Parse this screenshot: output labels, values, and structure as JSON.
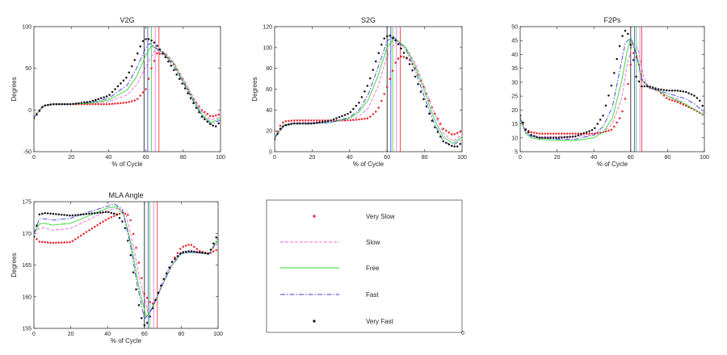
{
  "colors": {
    "very_slow": "#e8242a",
    "slow": "#ee66dd",
    "free": "#2ed82e",
    "fast": "#3a3ad6",
    "very_fast": "#111111",
    "axis": "#333333"
  },
  "legend": {
    "entries": [
      {
        "label": "Very Slow",
        "style": "dots",
        "color": "#e8242a"
      },
      {
        "label": "Slow",
        "style": "dashed",
        "color": "#ee66dd"
      },
      {
        "label": "Free",
        "style": "solid",
        "color": "#2ed82e"
      },
      {
        "label": "Fast",
        "style": "dashdot",
        "color": "#3a3ad6"
      },
      {
        "label": "Very Fast",
        "style": "dots",
        "color": "#111111"
      }
    ],
    "corner_tick": "0"
  },
  "chart_data": [
    {
      "type": "line",
      "title": "V2G",
      "xlabel": "% of Cycle",
      "ylabel": "Degrees",
      "xlim": [
        0,
        100
      ],
      "ylim": [
        -50,
        100
      ],
      "xticks": [
        0,
        20,
        40,
        60,
        80,
        100
      ],
      "yticks": [
        -50,
        0,
        50,
        100
      ],
      "peak_lines": [
        59,
        61,
        63,
        65,
        67
      ],
      "series": [
        {
          "name": "Very Slow",
          "x": [
            0,
            5,
            10,
            20,
            30,
            40,
            50,
            55,
            60,
            63,
            66,
            70,
            75,
            80,
            85,
            90,
            95,
            100
          ],
          "y": [
            -8,
            5,
            7,
            7,
            7,
            7,
            9,
            12,
            25,
            50,
            68,
            67,
            55,
            35,
            15,
            0,
            -8,
            -5
          ]
        },
        {
          "name": "Slow",
          "x": [
            0,
            5,
            10,
            20,
            30,
            40,
            50,
            55,
            60,
            65,
            70,
            75,
            80,
            85,
            90,
            95,
            100
          ],
          "y": [
            -9,
            5,
            7,
            7,
            8,
            10,
            18,
            30,
            52,
            72,
            70,
            57,
            38,
            17,
            -2,
            -12,
            -8
          ]
        },
        {
          "name": "Free",
          "x": [
            0,
            5,
            10,
            20,
            30,
            40,
            50,
            55,
            60,
            63,
            70,
            75,
            80,
            85,
            90,
            95,
            100
          ],
          "y": [
            -9,
            5,
            7,
            7,
            8,
            12,
            24,
            40,
            66,
            77,
            68,
            55,
            35,
            14,
            -5,
            -15,
            -10
          ]
        },
        {
          "name": "Fast",
          "x": [
            0,
            5,
            10,
            20,
            30,
            40,
            50,
            55,
            60,
            62,
            70,
            75,
            80,
            85,
            90,
            95,
            100
          ],
          "y": [
            -9,
            5,
            7,
            7,
            9,
            14,
            30,
            50,
            75,
            80,
            67,
            52,
            33,
            12,
            -7,
            -17,
            -12
          ]
        },
        {
          "name": "Very Fast",
          "x": [
            0,
            5,
            10,
            20,
            30,
            40,
            50,
            55,
            58,
            60,
            62,
            65,
            70,
            75,
            80,
            85,
            90,
            95,
            98,
            100
          ],
          "y": [
            -10,
            5,
            7,
            7,
            10,
            17,
            40,
            65,
            82,
            85,
            85,
            80,
            65,
            48,
            30,
            10,
            -8,
            -18,
            -20,
            -12
          ]
        }
      ]
    },
    {
      "type": "line",
      "title": "S2G",
      "xlabel": "% of Cycle",
      "ylabel": "Degrees",
      "xlim": [
        0,
        100
      ],
      "ylim": [
        0,
        120
      ],
      "xticks": [
        0,
        20,
        40,
        60,
        80,
        100
      ],
      "yticks": [
        0,
        20,
        40,
        60,
        80,
        100,
        120
      ],
      "peak_lines": [
        60,
        62,
        63,
        65,
        67
      ],
      "series": [
        {
          "name": "Very Slow",
          "x": [
            0,
            3,
            5,
            10,
            20,
            30,
            40,
            50,
            55,
            60,
            65,
            68,
            72,
            75,
            80,
            85,
            90,
            95,
            100
          ],
          "y": [
            14,
            25,
            29,
            30,
            30,
            30,
            30,
            32,
            40,
            62,
            88,
            92,
            88,
            80,
            60,
            38,
            22,
            16,
            20
          ]
        },
        {
          "name": "Slow",
          "x": [
            0,
            5,
            10,
            20,
            30,
            40,
            45,
            50,
            55,
            60,
            65,
            70,
            75,
            80,
            85,
            90,
            95,
            100
          ],
          "y": [
            14,
            26,
            28,
            28,
            29,
            30,
            34,
            42,
            62,
            92,
            106,
            100,
            85,
            62,
            38,
            18,
            10,
            16
          ]
        },
        {
          "name": "Free",
          "x": [
            0,
            5,
            10,
            20,
            30,
            40,
            45,
            50,
            55,
            60,
            64,
            70,
            75,
            80,
            85,
            90,
            95,
            100
          ],
          "y": [
            14,
            26,
            27,
            27,
            28,
            32,
            38,
            50,
            72,
            100,
            109,
            100,
            82,
            58,
            32,
            14,
            8,
            14
          ]
        },
        {
          "name": "Fast",
          "x": [
            0,
            5,
            10,
            20,
            30,
            40,
            45,
            50,
            55,
            60,
            63,
            70,
            75,
            80,
            85,
            90,
            95,
            100
          ],
          "y": [
            13,
            25,
            27,
            27,
            28,
            33,
            40,
            55,
            80,
            106,
            111,
            98,
            78,
            52,
            28,
            10,
            6,
            12
          ]
        },
        {
          "name": "Very Fast",
          "x": [
            0,
            3,
            5,
            10,
            20,
            30,
            40,
            45,
            50,
            55,
            58,
            61,
            65,
            70,
            75,
            80,
            85,
            90,
            95,
            98,
            100
          ],
          "y": [
            12,
            22,
            25,
            27,
            27,
            30,
            37,
            47,
            65,
            92,
            108,
            112,
            106,
            92,
            72,
            48,
            25,
            10,
            5,
            5,
            10
          ]
        }
      ]
    },
    {
      "type": "line",
      "title": "F2Ps",
      "xlabel": "% of Cycle",
      "ylabel": "",
      "xlim": [
        0,
        100
      ],
      "ylim": [
        5,
        50
      ],
      "xticks": [
        0,
        20,
        40,
        60,
        80,
        100
      ],
      "yticks": [
        5,
        10,
        15,
        20,
        25,
        30,
        35,
        40,
        45,
        50
      ],
      "peak_lines": [
        60,
        62,
        63,
        65,
        66
      ],
      "series": [
        {
          "name": "Very Slow",
          "x": [
            0,
            3,
            6,
            10,
            20,
            30,
            40,
            45,
            50,
            55,
            58,
            61,
            64,
            66,
            70,
            75,
            80,
            85,
            90,
            95,
            100
          ],
          "y": [
            17,
            13,
            12,
            11.5,
            11.5,
            11.5,
            11.5,
            12,
            13,
            18,
            27,
            41,
            38,
            31,
            28,
            27,
            24,
            23,
            21.5,
            20,
            18
          ]
        },
        {
          "name": "Slow",
          "x": [
            0,
            3,
            6,
            10,
            20,
            30,
            40,
            45,
            50,
            55,
            58,
            61,
            64,
            67,
            70,
            75,
            80,
            85,
            90,
            95,
            100
          ],
          "y": [
            17,
            12,
            11,
            10.5,
            10.5,
            10.5,
            11,
            12,
            15,
            24,
            36,
            44,
            42,
            32,
            28,
            27,
            25,
            24,
            22,
            20,
            18
          ]
        },
        {
          "name": "Free",
          "x": [
            0,
            3,
            6,
            10,
            20,
            30,
            40,
            45,
            50,
            55,
            58,
            60,
            63,
            66,
            70,
            75,
            80,
            85,
            90,
            95,
            100
          ],
          "y": [
            17,
            11.5,
            10,
            9.5,
            9,
            9,
            10,
            12,
            17,
            30,
            41,
            46,
            41,
            31,
            28,
            27,
            25,
            23.5,
            22,
            20,
            18
          ]
        },
        {
          "name": "Fast",
          "x": [
            0,
            3,
            6,
            10,
            20,
            30,
            40,
            45,
            50,
            54,
            57,
            60,
            63,
            66,
            70,
            75,
            80,
            85,
            90,
            95,
            100
          ],
          "y": [
            17,
            12,
            10.5,
            10,
            9.5,
            9.5,
            11,
            14,
            21,
            34,
            44,
            46,
            40,
            31,
            28,
            27,
            26,
            25,
            24,
            22,
            19
          ]
        },
        {
          "name": "Very Fast",
          "x": [
            0,
            3,
            6,
            10,
            20,
            30,
            40,
            45,
            50,
            53,
            55,
            57,
            59,
            61,
            63,
            66,
            70,
            75,
            80,
            85,
            90,
            95,
            98,
            100
          ],
          "y": [
            18,
            13,
            11,
            10,
            10,
            10.5,
            13,
            18,
            30,
            40,
            46,
            48.5,
            47,
            40,
            32,
            28.5,
            28.5,
            27.5,
            27,
            27,
            26.5,
            25,
            23,
            20
          ]
        }
      ]
    },
    {
      "type": "line",
      "title": "MLA Angle",
      "xlabel": "% of Cycle",
      "ylabel": "Degrees",
      "xlim": [
        0,
        100
      ],
      "ylim": [
        155,
        175
      ],
      "xticks": [
        0,
        20,
        40,
        60,
        80,
        100
      ],
      "yticks": [
        155,
        160,
        165,
        170,
        175
      ],
      "peak_lines": [
        60,
        62,
        63,
        65,
        67
      ],
      "series": [
        {
          "name": "Very Slow",
          "x": [
            0,
            3,
            6,
            10,
            20,
            30,
            40,
            48,
            52,
            56,
            60,
            64,
            66,
            70,
            75,
            80,
            85,
            90,
            95,
            100
          ],
          "y": [
            169.5,
            168.7,
            168.6,
            168.5,
            168.6,
            170.5,
            172.3,
            173.3,
            172.8,
            167,
            160.5,
            158.7,
            159.5,
            162.5,
            165.5,
            167.8,
            168.3,
            167.2,
            166.8,
            167.5
          ]
        },
        {
          "name": "Slow",
          "x": [
            0,
            3,
            6,
            10,
            20,
            30,
            40,
            46,
            50,
            54,
            58,
            62,
            65,
            70,
            75,
            80,
            85,
            90,
            95,
            100
          ],
          "y": [
            170,
            170.8,
            170.9,
            170.5,
            170.8,
            172.2,
            173.6,
            174,
            173,
            168,
            162,
            157.5,
            158.5,
            162.5,
            165.5,
            167,
            167.2,
            167,
            166.8,
            168.5
          ]
        },
        {
          "name": "Free",
          "x": [
            0,
            3,
            6,
            10,
            20,
            30,
            40,
            45,
            49,
            53,
            57,
            61,
            64,
            70,
            75,
            80,
            85,
            90,
            95,
            100
          ],
          "y": [
            170,
            171.5,
            171.6,
            171.3,
            171.6,
            172.8,
            174,
            174.2,
            172.8,
            168,
            161.5,
            156.8,
            158,
            162,
            165,
            166.8,
            167,
            166.9,
            166.7,
            169
          ]
        },
        {
          "name": "Fast",
          "x": [
            0,
            3,
            6,
            10,
            20,
            30,
            40,
            44,
            48,
            52,
            56,
            60,
            63,
            70,
            75,
            80,
            85,
            90,
            95,
            100
          ],
          "y": [
            170,
            172.3,
            172.3,
            172.1,
            172.4,
            173.4,
            174.3,
            174.6,
            173.8,
            168.8,
            162,
            156.5,
            157.5,
            162,
            165,
            166.8,
            167,
            166.9,
            166.7,
            169.3
          ]
        },
        {
          "name": "Very Fast",
          "x": [
            0,
            3,
            6,
            10,
            20,
            30,
            40,
            45,
            49,
            52,
            55,
            58,
            60,
            62,
            66,
            70,
            75,
            80,
            85,
            90,
            95,
            100
          ],
          "y": [
            169.5,
            173,
            173.2,
            173.1,
            172.8,
            173.1,
            173.4,
            173,
            171.5,
            167.5,
            162,
            157,
            155.5,
            156,
            159.5,
            162.5,
            165.5,
            167,
            167.2,
            167,
            166.8,
            170
          ]
        }
      ]
    }
  ]
}
